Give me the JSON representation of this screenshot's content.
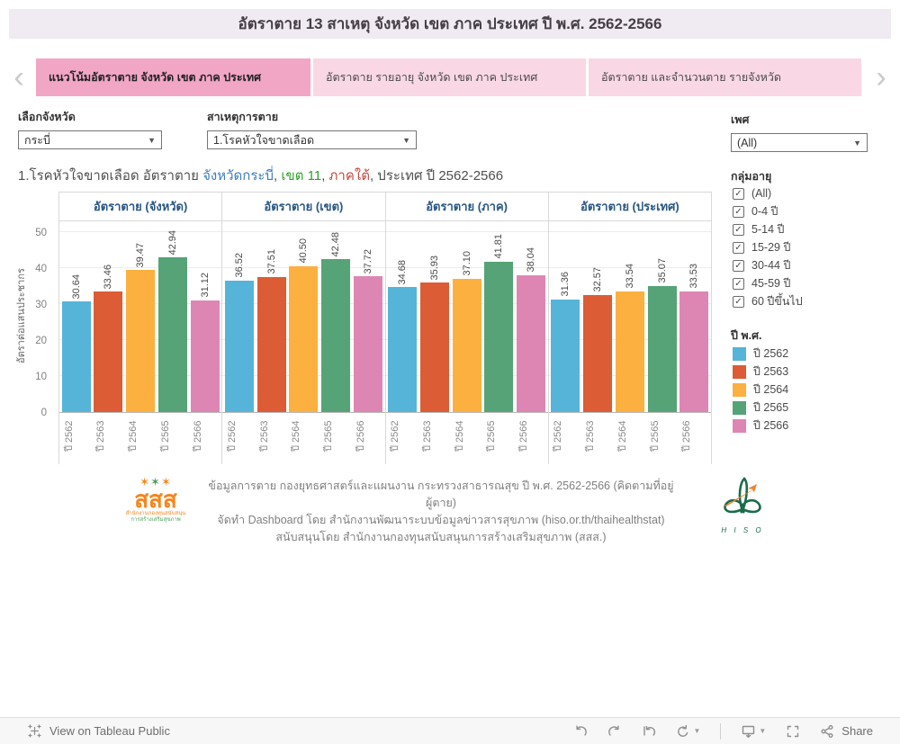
{
  "title": "อัตราตาย 13 สาเหตุ จังหวัด เขต ภาค ประเทศ ปี พ.ศ. 2562-2566",
  "tabs": [
    {
      "label": "แนวโน้มอัตราตาย จังหวัด เขต ภาค ประเทศ",
      "active": true
    },
    {
      "label": "อัตราตาย รายอายุ จังหวัด เขต ภาค ประเทศ",
      "active": false
    },
    {
      "label": "อัตราตาย และจำนวนตาย รายจังหวัด",
      "active": false
    }
  ],
  "filters": {
    "province": {
      "label": "เลือกจังหวัด",
      "value": "กระบี่"
    },
    "cause": {
      "label": "สาเหตุการตาย",
      "value": "1.โรคหัวใจขาดเลือด"
    },
    "sex": {
      "label": "เพศ",
      "value": "(All)"
    }
  },
  "subtitle": {
    "text_prefix": "1.โรคหัวใจขาดเลือด อัตราตาย ",
    "province": "จังหวัดกระบี่",
    "comma1": ", ",
    "zone": "เขต 11",
    "comma2": ", ",
    "region": "ภาคใต้",
    "text_suffix": ", ประเทศ ปี 2562-2566"
  },
  "chart_data": {
    "type": "bar",
    "title": "1.โรคหัวใจขาดเลือด อัตราตาย จังหวัดกระบี่, เขต 11, ภาคใต้, ประเทศ ปี 2562-2566",
    "ylabel": "อัตราต่อแสนประชากร",
    "xlabel": "",
    "categories": [
      "ปี 2562",
      "ปี 2563",
      "ปี 2564",
      "ปี 2565",
      "ปี 2566"
    ],
    "yticks": [
      0,
      10,
      20,
      30,
      40,
      50
    ],
    "ylim": [
      0,
      53.25
    ],
    "grid": true,
    "legend_position": "right",
    "bar_colors": [
      "#56B4D8",
      "#DB5C35",
      "#FCB03F",
      "#55A376",
      "#DE86B3"
    ],
    "panels": [
      {
        "title": "อัตราตาย (จังหวัด)",
        "values": [
          30.64,
          33.46,
          39.47,
          42.94,
          31.12
        ]
      },
      {
        "title": "อัตราตาย (เขต)",
        "values": [
          36.52,
          37.51,
          40.5,
          42.48,
          37.72
        ]
      },
      {
        "title": "อัตราตาย (ภาค)",
        "values": [
          34.68,
          35.93,
          37.1,
          41.81,
          38.04
        ]
      },
      {
        "title": "อัตราตาย (ประเทศ)",
        "values": [
          31.36,
          32.57,
          33.54,
          35.07,
          33.53
        ]
      }
    ]
  },
  "sidebar": {
    "age": {
      "title": "กลุ่มอายุ",
      "options": [
        {
          "label": "(All)",
          "checked": true
        },
        {
          "label": "0-4 ปี",
          "checked": true
        },
        {
          "label": "5-14 ปี",
          "checked": true
        },
        {
          "label": "15-29 ปี",
          "checked": true
        },
        {
          "label": "30-44 ปี",
          "checked": true
        },
        {
          "label": "45-59 ปี",
          "checked": true
        },
        {
          "label": "60 ปีขึ้นไป",
          "checked": true
        }
      ]
    },
    "years": {
      "title": "ปี พ.ศ.",
      "items": [
        {
          "label": "ปี 2562",
          "color": "#56B4D8"
        },
        {
          "label": "ปี 2563",
          "color": "#DB5C35"
        },
        {
          "label": "ปี 2564",
          "color": "#FCB03F"
        },
        {
          "label": "ปี 2565",
          "color": "#55A376"
        },
        {
          "label": "ปี 2566",
          "color": "#DE86B3"
        }
      ]
    }
  },
  "footer": {
    "lines": [
      "ข้อมูลการตาย กองยุทธศาสตร์และแผนงาน กระทรวงสาธารณสุข ปี พ.ศ. 2562-2566 (คิดตามที่อยู่ผู้ตาย)",
      "จัดทำ Dashboard โดย สำนักงานพัฒนาระบบข้อมูลข่าวสารสุขภาพ (hiso.or.th/thaihealthstat)",
      "สนับสนุนโดย สำนักงานกองทุนสนับสนุนการสร้างเสริมสุขภาพ (สสส.)"
    ],
    "ssss": {
      "stars": "✶✶✶",
      "name": "สสส",
      "sub1": "สำนักงานกองทุนสนับสนุน",
      "sub2": "การสร้างเสริมสุขภาพ"
    },
    "hiso": {
      "caption": "H I S O"
    }
  },
  "toolbar": {
    "view_label": "View on Tableau Public",
    "share_label": "Share",
    "accent_gray": "#8F8F8F"
  }
}
